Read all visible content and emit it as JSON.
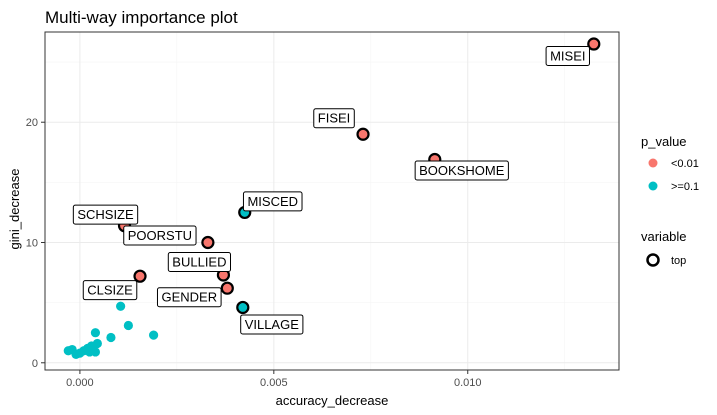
{
  "chart_data": {
    "type": "scatter",
    "title": "Multi-way importance plot",
    "xlabel": "accuracy_decrease",
    "ylabel": "gini_decrease",
    "xlim": [
      -0.0009,
      0.0139
    ],
    "ylim": [
      -0.6,
      27.5
    ],
    "x_ticks": [
      0.0,
      0.005,
      0.01
    ],
    "x_tick_labels": [
      "0.000",
      "0.005",
      "0.010"
    ],
    "y_ticks": [
      0,
      10,
      20
    ],
    "y_tick_labels": [
      "0",
      "10",
      "20"
    ],
    "grid": true,
    "colors": {
      "p_lt_001": "#F8766D",
      "p_ge_01": "#00BFC4",
      "outline": "#000000",
      "grid_major": "#EBEBEB",
      "grid_minor": "#F5F5F5",
      "panel_border": "#333333"
    },
    "legend": {
      "position": "right",
      "p_value_title": "p_value",
      "p_value_items": [
        "<0.01",
        ">=0.1"
      ],
      "variable_title": "variable",
      "variable_items": [
        "top"
      ]
    },
    "top_points": [
      {
        "name": "MISEI",
        "x": 0.01325,
        "y": 26.5,
        "p_value": "<0.01"
      },
      {
        "name": "FISEI",
        "x": 0.0073,
        "y": 19.0,
        "p_value": "<0.01"
      },
      {
        "name": "BOOKSHOME",
        "x": 0.00915,
        "y": 16.9,
        "p_value": "<0.01"
      },
      {
        "name": "MISCED",
        "x": 0.00425,
        "y": 12.5,
        "p_value": ">=0.1"
      },
      {
        "name": "SCHSIZE",
        "x": 0.00115,
        "y": 11.4,
        "p_value": "<0.01"
      },
      {
        "name": "POORSTU",
        "x": 0.0033,
        "y": 10.0,
        "p_value": "<0.01"
      },
      {
        "name": "BULLIED",
        "x": 0.0037,
        "y": 7.3,
        "p_value": "<0.01"
      },
      {
        "name": "CLSIZE",
        "x": 0.00155,
        "y": 7.2,
        "p_value": "<0.01"
      },
      {
        "name": "GENDER",
        "x": 0.0038,
        "y": 6.2,
        "p_value": "<0.01"
      },
      {
        "name": "VILLAGE",
        "x": 0.0042,
        "y": 4.6,
        "p_value": ">=0.1"
      }
    ],
    "other_points": [
      {
        "x": 0.00105,
        "y": 4.7
      },
      {
        "x": 0.00125,
        "y": 3.1
      },
      {
        "x": 0.0019,
        "y": 2.3
      },
      {
        "x": 0.0008,
        "y": 2.1
      },
      {
        "x": 0.0004,
        "y": 2.5
      },
      {
        "x": 0.00045,
        "y": 1.6
      },
      {
        "x": 0.0003,
        "y": 1.4
      },
      {
        "x": 0.0002,
        "y": 1.2
      },
      {
        "x": 0.0001,
        "y": 1.0
      },
      {
        "x": 0.0,
        "y": 0.8
      },
      {
        "x": -0.0001,
        "y": 0.7
      },
      {
        "x": 0.0004,
        "y": 0.9
      },
      {
        "x": -0.0003,
        "y": 1.0
      },
      {
        "x": -0.0002,
        "y": 1.1
      },
      {
        "x": 0.00025,
        "y": 0.9
      }
    ]
  }
}
